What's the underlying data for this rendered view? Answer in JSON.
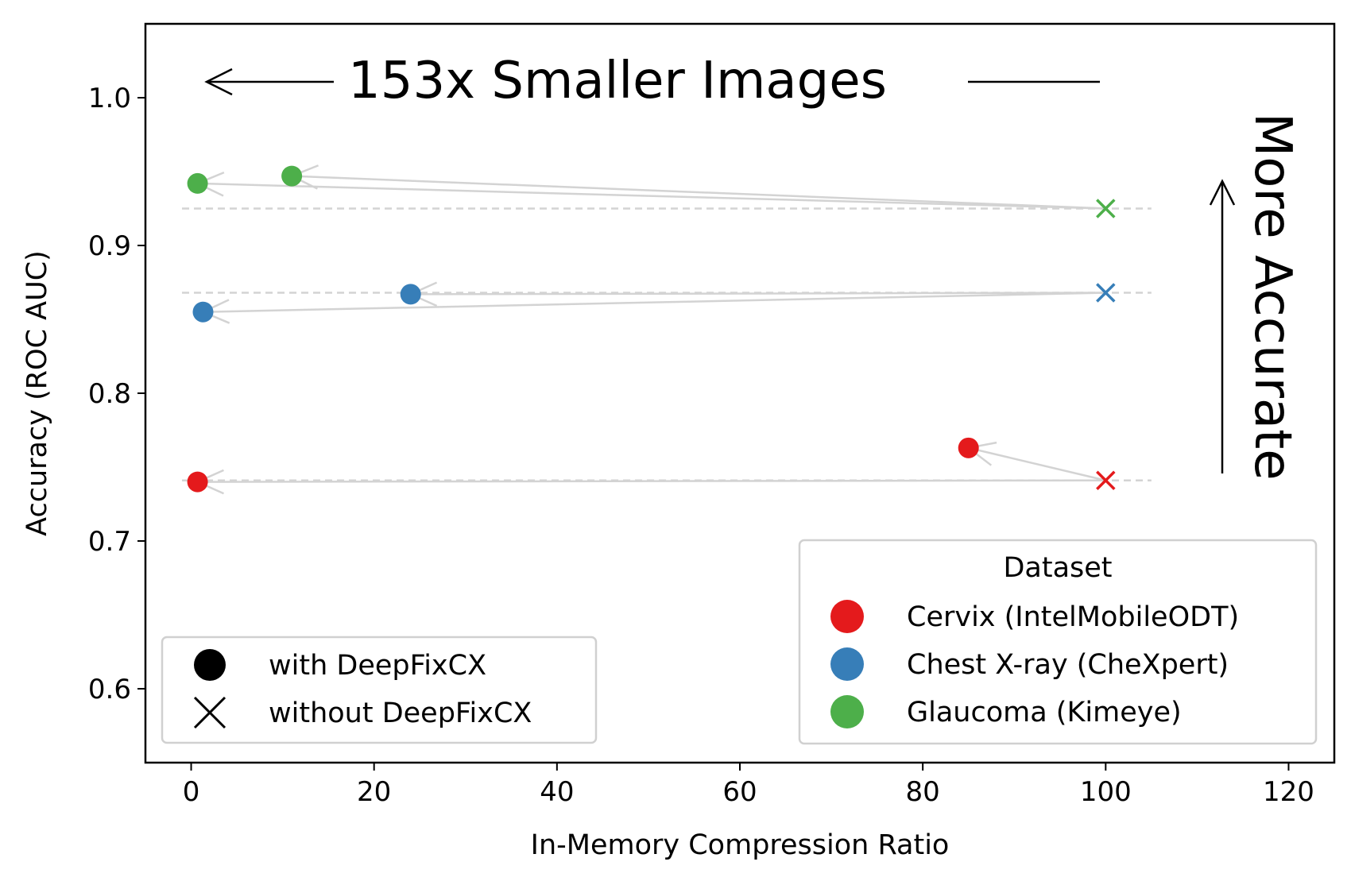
{
  "chart_data": {
    "type": "scatter",
    "xlabel": "In-Memory Compression Ratio",
    "ylabel": "Accuracy (ROC AUC)",
    "xlim": [
      -5,
      125
    ],
    "ylim": [
      0.55,
      1.05
    ],
    "x_ticks": [
      0,
      20,
      40,
      60,
      80,
      100,
      120
    ],
    "y_ticks": [
      0.6,
      0.7,
      0.8,
      0.9,
      1.0
    ],
    "x_tick_labels": [
      "0",
      "20",
      "40",
      "60",
      "80",
      "100",
      "120"
    ],
    "y_tick_labels": [
      "0.6",
      "0.7",
      "0.8",
      "0.9",
      "1.0"
    ],
    "grid": false,
    "annotations": {
      "horizontal": "153x Smaller Images",
      "vertical": "More Accurate"
    },
    "series": [
      {
        "name": "Cervix (IntelMobileODT)",
        "color": "#e41a1c",
        "baseline": {
          "x": 100,
          "y": 0.741
        },
        "with_deepfixcx": [
          {
            "x": 85,
            "y": 0.763
          },
          {
            "x": 0.7,
            "y": 0.74
          }
        ]
      },
      {
        "name": "Chest X-ray (CheXpert)",
        "color": "#377eb8",
        "baseline": {
          "x": 100,
          "y": 0.868
        },
        "with_deepfixcx": [
          {
            "x": 24,
            "y": 0.867
          },
          {
            "x": 1.3,
            "y": 0.855
          }
        ]
      },
      {
        "name": "Glaucoma (Kimeye)",
        "color": "#4daf4a",
        "baseline": {
          "x": 100,
          "y": 0.925
        },
        "with_deepfixcx": [
          {
            "x": 11,
            "y": 0.947
          },
          {
            "x": 0.7,
            "y": 0.942
          }
        ]
      }
    ],
    "legend_markers": {
      "with_label": "with DeepFixCX",
      "without_label": "without DeepFixCX",
      "placement": "lower left"
    },
    "legend_dataset": {
      "title": "Dataset",
      "placement": "lower right"
    }
  }
}
